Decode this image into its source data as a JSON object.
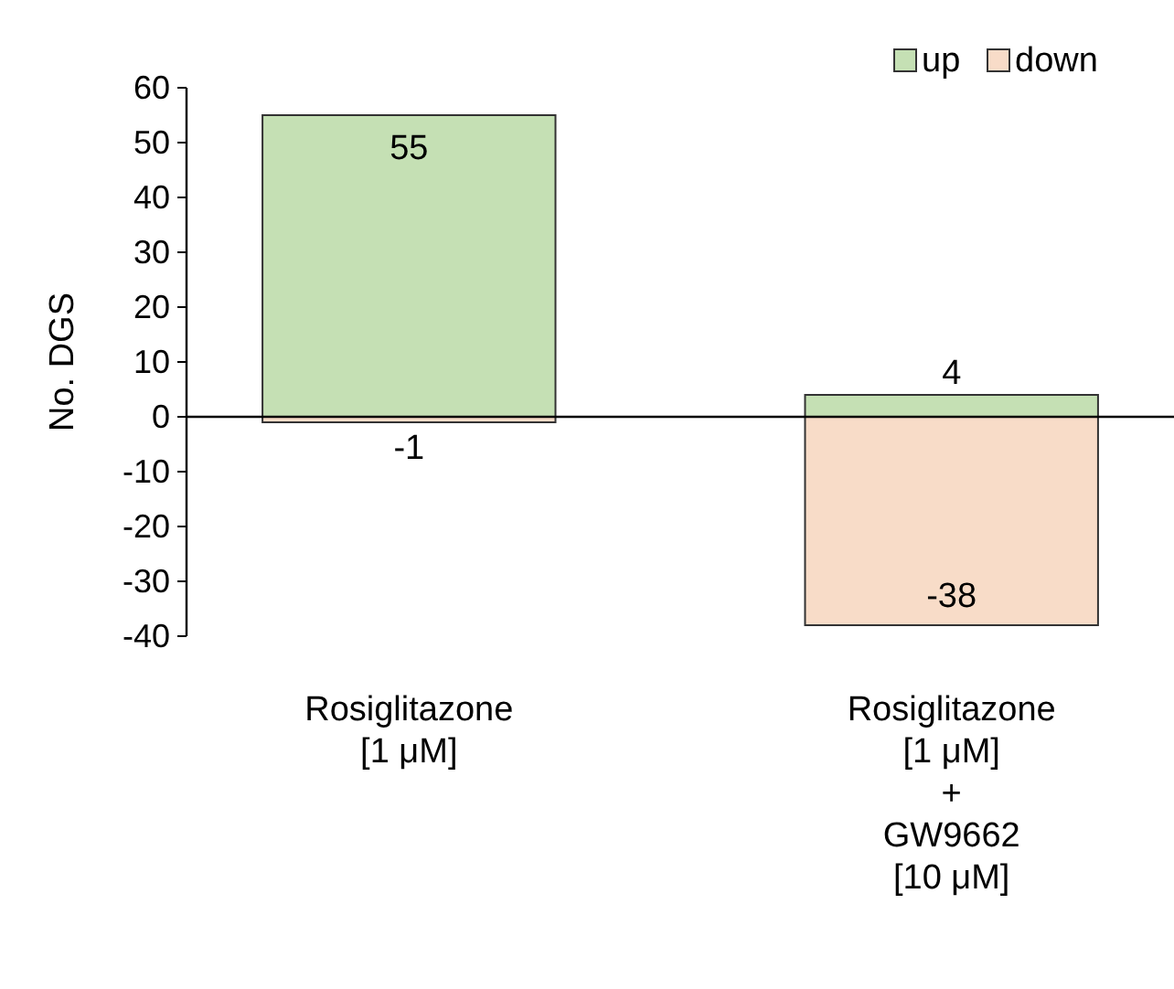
{
  "chart_data": {
    "type": "bar",
    "stacked": true,
    "ylabel": "No. DGS",
    "categories": [
      "Rosiglitazone\n[1 μM]",
      "Rosiglitazone\n[1 μM]\n+\nGW9662\n[10 μM]"
    ],
    "series": [
      {
        "name": "up",
        "color": "#c5e0b4",
        "values": [
          55,
          4
        ]
      },
      {
        "name": "down",
        "color": "#f8dcc8",
        "values": [
          -1,
          -38
        ]
      }
    ],
    "ylim": [
      -40,
      60
    ],
    "yticks": [
      -40,
      -30,
      -20,
      -10,
      0,
      10,
      20,
      30,
      40,
      50,
      60
    ],
    "legend": "top right",
    "data_labels": true
  }
}
